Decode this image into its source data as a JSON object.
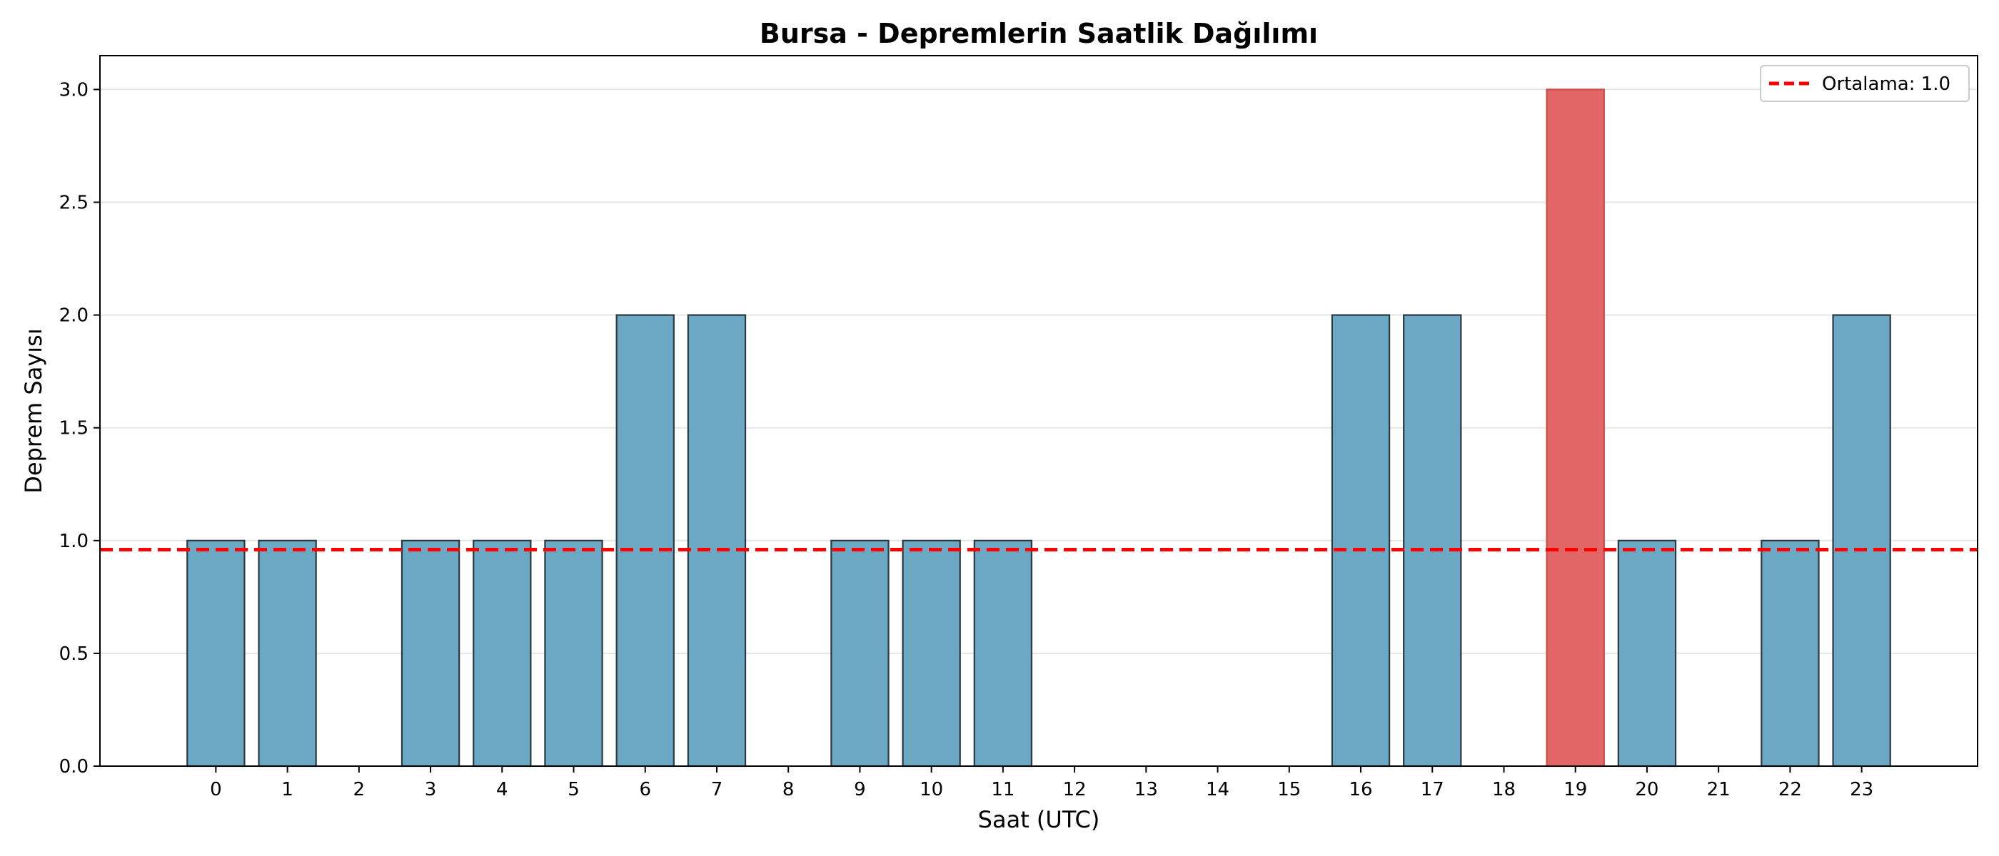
{
  "chart_data": {
    "type": "bar",
    "title": "Bursa - Depremlerin Saatlik Dağılımı",
    "xlabel": "Saat (UTC)",
    "ylabel": "Deprem Sayısı",
    "categories": [
      "0",
      "1",
      "2",
      "3",
      "4",
      "5",
      "6",
      "7",
      "8",
      "9",
      "10",
      "11",
      "12",
      "13",
      "14",
      "15",
      "16",
      "17",
      "18",
      "19",
      "20",
      "21",
      "22",
      "23"
    ],
    "values": [
      1,
      1,
      0,
      1,
      1,
      1,
      2,
      2,
      0,
      1,
      1,
      1,
      0,
      0,
      0,
      0,
      2,
      2,
      0,
      3,
      1,
      0,
      1,
      2
    ],
    "highlight_index": 19,
    "ylim": [
      0,
      3.15
    ],
    "yticks": [
      "0.0",
      "0.5",
      "1.0",
      "1.5",
      "2.0",
      "2.5",
      "3.0"
    ],
    "mean_line": {
      "value": 0.96,
      "label": "Ortalama: 1.0"
    },
    "legend_position": "top-right",
    "grid": "horizontal",
    "colors": {
      "bar": "#6aa8c4",
      "bar_edge": "#2b3a42",
      "highlight": "#e36667",
      "highlight_edge": "#c94a4b",
      "mean_line": "#ff0000",
      "grid": "#e6e6e6"
    }
  }
}
